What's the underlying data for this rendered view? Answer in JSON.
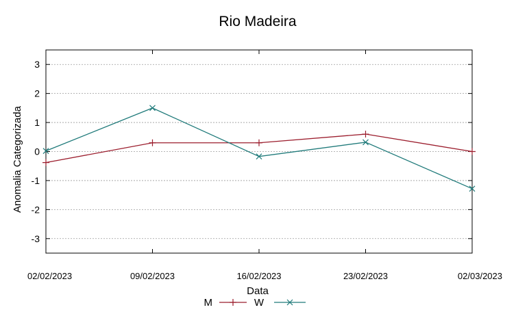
{
  "chart_data": {
    "type": "line",
    "title": "Rio Madeira",
    "xlabel": "Data",
    "ylabel": "Anomalia Categorizada",
    "categories": [
      "02/02/2023",
      "09/02/2023",
      "16/02/2023",
      "23/02/2023",
      "02/03/2023"
    ],
    "ylim": [
      -3.5,
      3.5
    ],
    "yticks": [
      3,
      2,
      1,
      0,
      -1,
      -2,
      -3
    ],
    "grid": true,
    "legend_position": "bottom",
    "series": [
      {
        "name": "M",
        "color": "#9b1c2c",
        "marker": "plus",
        "values": [
          -0.38,
          0.3,
          0.3,
          0.6,
          0.0
        ]
      },
      {
        "name": "W",
        "color": "#1f7a7a",
        "marker": "cross",
        "values": [
          0.02,
          1.5,
          -0.17,
          0.32,
          -1.28
        ]
      }
    ]
  }
}
